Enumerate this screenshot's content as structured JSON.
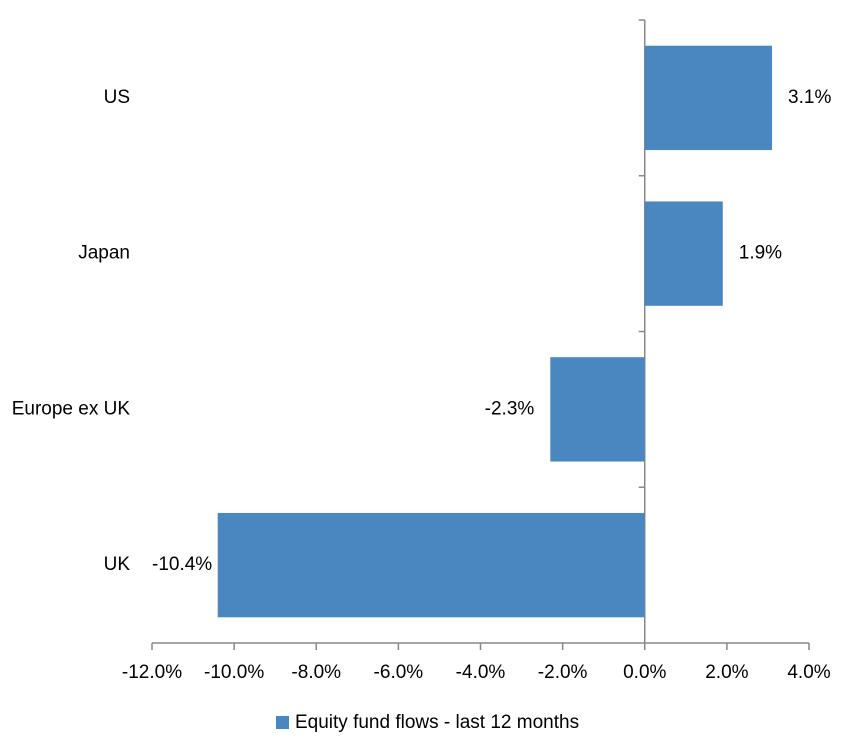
{
  "chart_data": {
    "type": "bar",
    "orientation": "horizontal",
    "categories": [
      "US",
      "Japan",
      "Europe ex UK",
      "UK"
    ],
    "series": [
      {
        "name": "Equity fund flows - last 12 months",
        "color": "#4a86bf",
        "values": [
          3.1,
          1.9,
          -2.3,
          -10.4
        ],
        "value_labels": [
          "3.1%",
          "1.9%",
          "-2.3%",
          "-10.4%"
        ]
      }
    ],
    "xlim": [
      -12,
      4
    ],
    "xticks": [
      {
        "value": -12,
        "label": "-12.0%"
      },
      {
        "value": -10,
        "label": "-10.0%"
      },
      {
        "value": -8,
        "label": "-8.0%"
      },
      {
        "value": -6,
        "label": "-6.0%"
      },
      {
        "value": -4,
        "label": "-4.0%"
      },
      {
        "value": -2,
        "label": "-2.0%"
      },
      {
        "value": 0,
        "label": "0.0%"
      },
      {
        "value": 2,
        "label": "2.0%"
      },
      {
        "value": 4,
        "label": "4.0%"
      }
    ],
    "legend": "bottom"
  }
}
